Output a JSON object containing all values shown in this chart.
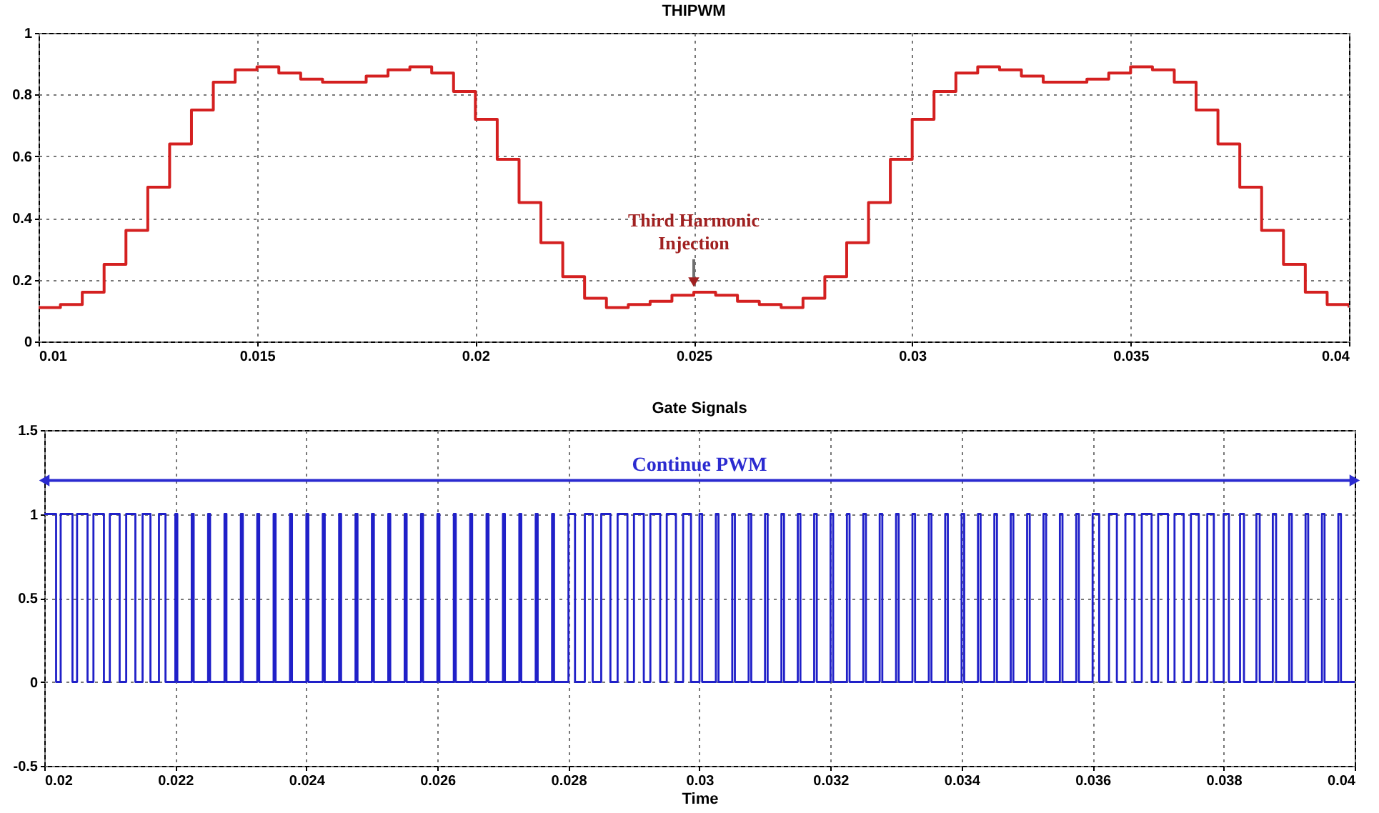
{
  "chart_data": [
    {
      "type": "step",
      "title": "THIPWM",
      "x": [
        0.01,
        0.0105,
        0.011,
        0.0115,
        0.012,
        0.0125,
        0.013,
        0.0135,
        0.014,
        0.0145,
        0.015,
        0.0155,
        0.016,
        0.0165,
        0.017,
        0.0175,
        0.018,
        0.0185,
        0.019,
        0.0195,
        0.02,
        0.0205,
        0.021,
        0.0215,
        0.022,
        0.0225,
        0.023,
        0.0235,
        0.024,
        0.0245,
        0.025,
        0.0255,
        0.026,
        0.0265,
        0.027,
        0.0275,
        0.028,
        0.0285,
        0.029,
        0.0295,
        0.03,
        0.0305,
        0.031,
        0.0315,
        0.032,
        0.0325,
        0.033,
        0.0335,
        0.034,
        0.0345,
        0.035,
        0.0355,
        0.036,
        0.0365,
        0.037,
        0.0375,
        0.038,
        0.0385,
        0.039,
        0.0395,
        0.04
      ],
      "series": [
        {
          "color": "#d42020",
          "values": [
            0.11,
            0.12,
            0.16,
            0.25,
            0.36,
            0.5,
            0.64,
            0.75,
            0.84,
            0.88,
            0.89,
            0.87,
            0.85,
            0.84,
            0.84,
            0.86,
            0.88,
            0.89,
            0.87,
            0.81,
            0.72,
            0.59,
            0.45,
            0.32,
            0.21,
            0.14,
            0.11,
            0.12,
            0.13,
            0.15,
            0.16,
            0.15,
            0.13,
            0.12,
            0.11,
            0.14,
            0.21,
            0.32,
            0.45,
            0.59,
            0.72,
            0.81,
            0.87,
            0.89,
            0.88,
            0.86,
            0.84,
            0.84,
            0.85,
            0.87,
            0.89,
            0.88,
            0.84,
            0.75,
            0.64,
            0.5,
            0.36,
            0.25,
            0.16,
            0.12,
            0.11
          ]
        }
      ],
      "xlim": [
        0.01,
        0.04
      ],
      "xticks": [
        0.01,
        0.015,
        0.02,
        0.025,
        0.03,
        0.035,
        0.04
      ],
      "ylim": [
        0,
        1
      ],
      "yticks": [
        0,
        0.2,
        0.4,
        0.6,
        0.8,
        1
      ],
      "grid": true,
      "annotations": [
        {
          "text": "Third Harmonic\nInjection",
          "x": 0.025,
          "y": 0.16
        }
      ]
    },
    {
      "type": "step",
      "title": "Gate Signals",
      "xlabel": "Time",
      "x": [
        0.02,
        0.02018,
        0.02025,
        0.02043,
        0.0205,
        0.02066,
        0.02075,
        0.02091,
        0.021,
        0.02115,
        0.02125,
        0.02139,
        0.0215,
        0.02162,
        0.02175,
        0.02185,
        0.022,
        0.02203,
        0.02225,
        0.02228,
        0.0225,
        0.02253,
        0.02275,
        0.02278,
        0.023,
        0.02303,
        0.02325,
        0.02328,
        0.0235,
        0.02353,
        0.02375,
        0.02378,
        0.024,
        0.02403,
        0.02425,
        0.02428,
        0.0245,
        0.02453,
        0.02475,
        0.02478,
        0.025,
        0.02503,
        0.02525,
        0.02528,
        0.0255,
        0.02553,
        0.02575,
        0.02578,
        0.026,
        0.02603,
        0.02625,
        0.02628,
        0.0265,
        0.02653,
        0.02675,
        0.02678,
        0.027,
        0.02703,
        0.02725,
        0.02728,
        0.0275,
        0.02753,
        0.02775,
        0.02778,
        0.028,
        0.0281,
        0.02825,
        0.02837,
        0.0285,
        0.02864,
        0.02875,
        0.0289,
        0.029,
        0.02915,
        0.02925,
        0.0294,
        0.0295,
        0.02964,
        0.02975,
        0.02987,
        0.03,
        0.03004,
        0.03025,
        0.03029,
        0.0305,
        0.03054,
        0.03075,
        0.03079,
        0.031,
        0.03104,
        0.03125,
        0.03129,
        0.0315,
        0.03154,
        0.03175,
        0.03179,
        0.032,
        0.03204,
        0.03225,
        0.03229,
        0.0325,
        0.03254,
        0.03275,
        0.03279,
        0.033,
        0.03304,
        0.03325,
        0.03329,
        0.0335,
        0.03354,
        0.03375,
        0.03379,
        0.034,
        0.03404,
        0.03425,
        0.03429,
        0.0345,
        0.03454,
        0.03475,
        0.03479,
        0.035,
        0.03504,
        0.03525,
        0.03529,
        0.0355,
        0.03554,
        0.03575,
        0.03579,
        0.036,
        0.0361,
        0.03625,
        0.03637,
        0.0365,
        0.03664,
        0.03675,
        0.0369,
        0.037,
        0.03715,
        0.03725,
        0.03739,
        0.0375,
        0.03762,
        0.03775,
        0.03785,
        0.038,
        0.03808,
        0.03825,
        0.03831,
        0.0385,
        0.03855,
        0.03875,
        0.0388,
        0.039,
        0.03904,
        0.03925,
        0.03929,
        0.0395,
        0.03954,
        0.03975,
        0.03979,
        0.04
      ],
      "series": [
        {
          "color": "#2020c8",
          "values": [
            1,
            0,
            1,
            0,
            1,
            0,
            1,
            0,
            1,
            0,
            1,
            0,
            1,
            0,
            1,
            0,
            1,
            0,
            1,
            0,
            1,
            0,
            1,
            0,
            1,
            0,
            1,
            0,
            1,
            0,
            1,
            0,
            1,
            0,
            1,
            0,
            1,
            0,
            1,
            0,
            1,
            0,
            1,
            0,
            1,
            0,
            1,
            0,
            1,
            0,
            1,
            0,
            1,
            0,
            1,
            0,
            1,
            0,
            1,
            0,
            1,
            0,
            1,
            0,
            1,
            0,
            1,
            0,
            1,
            0,
            1,
            0,
            1,
            0,
            1,
            0,
            1,
            0,
            1,
            0,
            1,
            0,
            1,
            0,
            1,
            0,
            1,
            0,
            1,
            0,
            1,
            0,
            1,
            0,
            1,
            0,
            1,
            0,
            1,
            0,
            1,
            0,
            1,
            0,
            1,
            0,
            1,
            0,
            1,
            0,
            1,
            0,
            1,
            0,
            1,
            0,
            1,
            0,
            1,
            0,
            1,
            0,
            1,
            0,
            1,
            0,
            1,
            0,
            1,
            0,
            1,
            0,
            1,
            0,
            1,
            0,
            1,
            0,
            1,
            0,
            1,
            0,
            1,
            0,
            1,
            0,
            1,
            0,
            1,
            0,
            1,
            0,
            1,
            0,
            1,
            0,
            1,
            0,
            1,
            0,
            0
          ]
        }
      ],
      "xlim": [
        0.02,
        0.04
      ],
      "xticks": [
        0.02,
        0.022,
        0.024,
        0.026,
        0.028,
        0.03,
        0.032,
        0.034,
        0.036,
        0.038,
        0.04
      ],
      "ylim": [
        -0.5,
        1.5
      ],
      "yticks": [
        -0.5,
        0,
        0.5,
        1,
        1.5
      ],
      "grid": true,
      "ref_lines": [
        {
          "axis": "y",
          "value": 1.2,
          "label": "Continue PWM",
          "color": "#2b2bd0"
        }
      ]
    }
  ]
}
